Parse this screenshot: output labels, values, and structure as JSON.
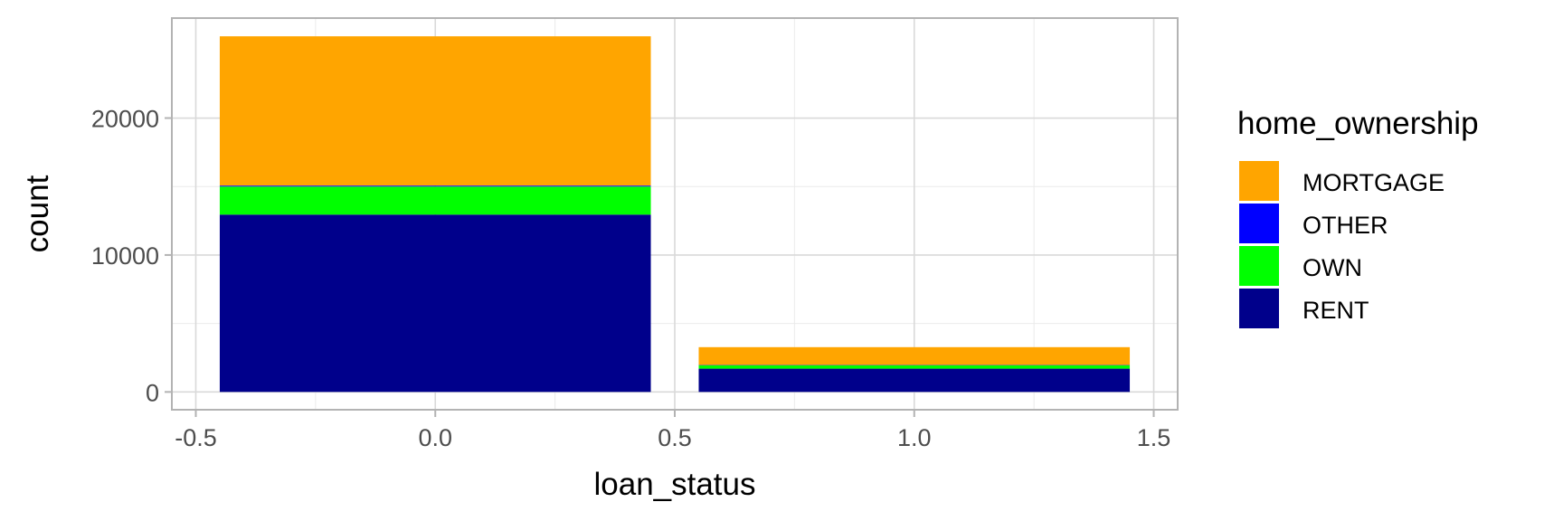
{
  "chart_data": {
    "type": "bar",
    "stacked": true,
    "xlabel": "loan_status",
    "ylabel": "count",
    "xlim": [
      -0.55,
      1.55
    ],
    "ylim": [
      -1300,
      27300
    ],
    "x_ticks": [
      -0.5,
      0.0,
      0.5,
      1.0,
      1.5
    ],
    "x_tick_labels": [
      "-0.5",
      "0.0",
      "0.5",
      "1.0",
      "1.5"
    ],
    "y_ticks": [
      0,
      10000,
      20000
    ],
    "y_tick_labels": [
      "0",
      "10000",
      "20000"
    ],
    "bar_width": 0.9,
    "grid": true,
    "legend_title": "home_ownership",
    "legend_position": "right",
    "categories": [
      0,
      1
    ],
    "series": [
      {
        "name": "MORTGAGE",
        "color": "#FFA500",
        "values": [
          10900,
          1300
        ]
      },
      {
        "name": "OTHER",
        "color": "#0000FF",
        "values": [
          70,
          20
        ]
      },
      {
        "name": "OWN",
        "color": "#00FF00",
        "values": [
          2050,
          250
        ]
      },
      {
        "name": "RENT",
        "color": "#00008B",
        "values": [
          12950,
          1700
        ]
      }
    ],
    "stack_order_bottom_to_top": [
      "RENT",
      "OWN",
      "OTHER",
      "MORTGAGE"
    ]
  }
}
